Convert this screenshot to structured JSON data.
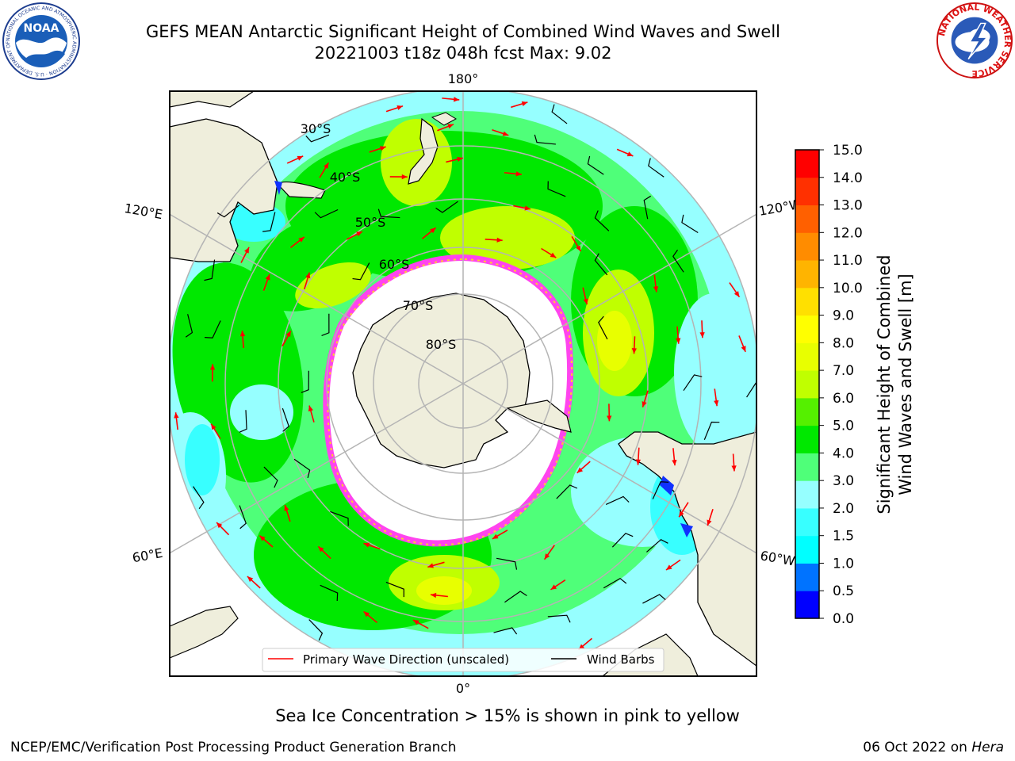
{
  "header": {
    "title_line1": "GEFS MEAN Antarctic Significant Height of Combined Wind Waves and Swell",
    "title_line2": "20221003 t18z 048h fcst   Max: 9.02"
  },
  "logos": {
    "noaa_text": "NOAA",
    "noaa_ring_text": "NATIONAL OCEANIC AND ATMOSPHERIC ADMINISTRATION · U.S. DEPARTMENT OF COMMERCE",
    "nws_ring_text": "NATIONAL WEATHER SERVICE"
  },
  "map": {
    "projection": "south-polar-stereographic",
    "longitude_labels": {
      "top": "180°",
      "bottom": "0°",
      "upper_left": "120°E",
      "upper_right": "120°W",
      "lower_left": "60°E",
      "lower_right": "60°W"
    },
    "latitude_labels": [
      "30°S",
      "40°S",
      "50°S",
      "60°S",
      "70°S",
      "80°S"
    ],
    "legend": {
      "wave_label": "Primary Wave Direction (unscaled)",
      "wind_label": "Wind Barbs",
      "wave_color": "#ff0000",
      "wind_color": "#000000"
    },
    "colors": {
      "land": "#efeedc",
      "ice_free_interior": "#ffffff",
      "sea_ice_edge": "#ff44ee"
    }
  },
  "colorbar": {
    "label_line1": "Significant Height of Combined",
    "label_line2": "Wind Waves and Swell [m]",
    "ticks": [
      "0.0",
      "0.5",
      "1.0",
      "1.5",
      "2.0",
      "3.0",
      "4.0",
      "5.0",
      "6.0",
      "7.0",
      "8.0",
      "9.0",
      "10.0",
      "11.0",
      "12.0",
      "13.0",
      "14.0",
      "15.0"
    ],
    "colors": [
      "#0000ff",
      "#0073ff",
      "#00ffff",
      "#38ffff",
      "#96ffff",
      "#4fff79",
      "#00e800",
      "#55f000",
      "#c0ff00",
      "#e8ff00",
      "#ffff00",
      "#ffe000",
      "#ffb400",
      "#ff8c00",
      "#ff6000",
      "#ff3000",
      "#ff0000"
    ]
  },
  "caption": "Sea Ice Concentration > 15% is shown in pink to yellow",
  "footer": {
    "left": "NCEP/EMC/Verification Post Processing Product Generation Branch",
    "right_date": "06 Oct 2022 on ",
    "right_machine": "Hera"
  }
}
